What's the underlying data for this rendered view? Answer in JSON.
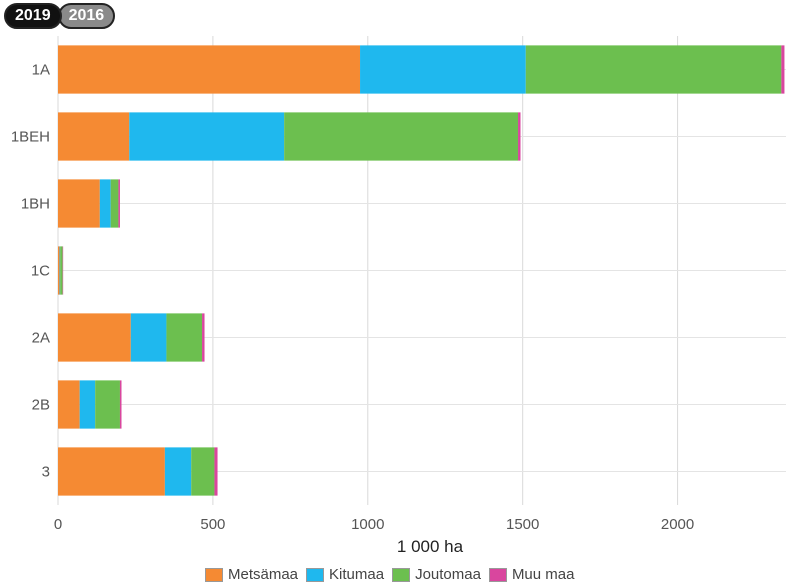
{
  "toggle": {
    "options": [
      "2019",
      "2016"
    ],
    "selected": "2019"
  },
  "chart_data": {
    "type": "bar",
    "orientation": "horizontal",
    "stacked": true,
    "categories": [
      "1A",
      "1BEH",
      "1BH",
      "1C",
      "2A",
      "2B",
      "3"
    ],
    "series": [
      {
        "name": "Metsämaa",
        "color": "#f58a33",
        "values": [
          975,
          230,
          135,
          5,
          235,
          70,
          345
        ]
      },
      {
        "name": "Kitumaa",
        "color": "#1fb8ee",
        "values": [
          535,
          500,
          35,
          2,
          115,
          50,
          85
        ]
      },
      {
        "name": "Joutomaa",
        "color": "#6cbf4f",
        "values": [
          825,
          755,
          25,
          8,
          115,
          80,
          75
        ]
      },
      {
        "name": "Muu maa",
        "color": "#d9469e",
        "values": [
          10,
          8,
          5,
          1,
          8,
          5,
          10
        ]
      }
    ],
    "xlabel": "1 000 ha",
    "ylabel": "",
    "xlim": [
      0,
      2350
    ],
    "xticks": [
      0,
      500,
      1000,
      1500,
      2000
    ],
    "grid": true,
    "legend_position": "bottom"
  }
}
